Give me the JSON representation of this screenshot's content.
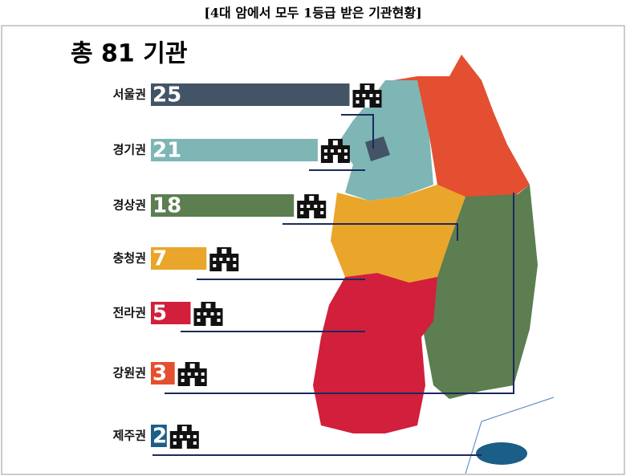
{
  "chart_data": {
    "type": "bar",
    "title": "[4대 암에서 모두 1등급 받은 기관현황]",
    "subtitle": "총 81 기관",
    "categories": [
      "서울권",
      "경기권",
      "경상권",
      "충청권",
      "전라권",
      "강원권",
      "제주권"
    ],
    "values": [
      25,
      21,
      18,
      7,
      5,
      3,
      2
    ],
    "colors": [
      "#435466",
      "#7db6b5",
      "#5c7e50",
      "#e9a62a",
      "#d11f3c",
      "#e4502f",
      "#1b5e88"
    ]
  }
}
